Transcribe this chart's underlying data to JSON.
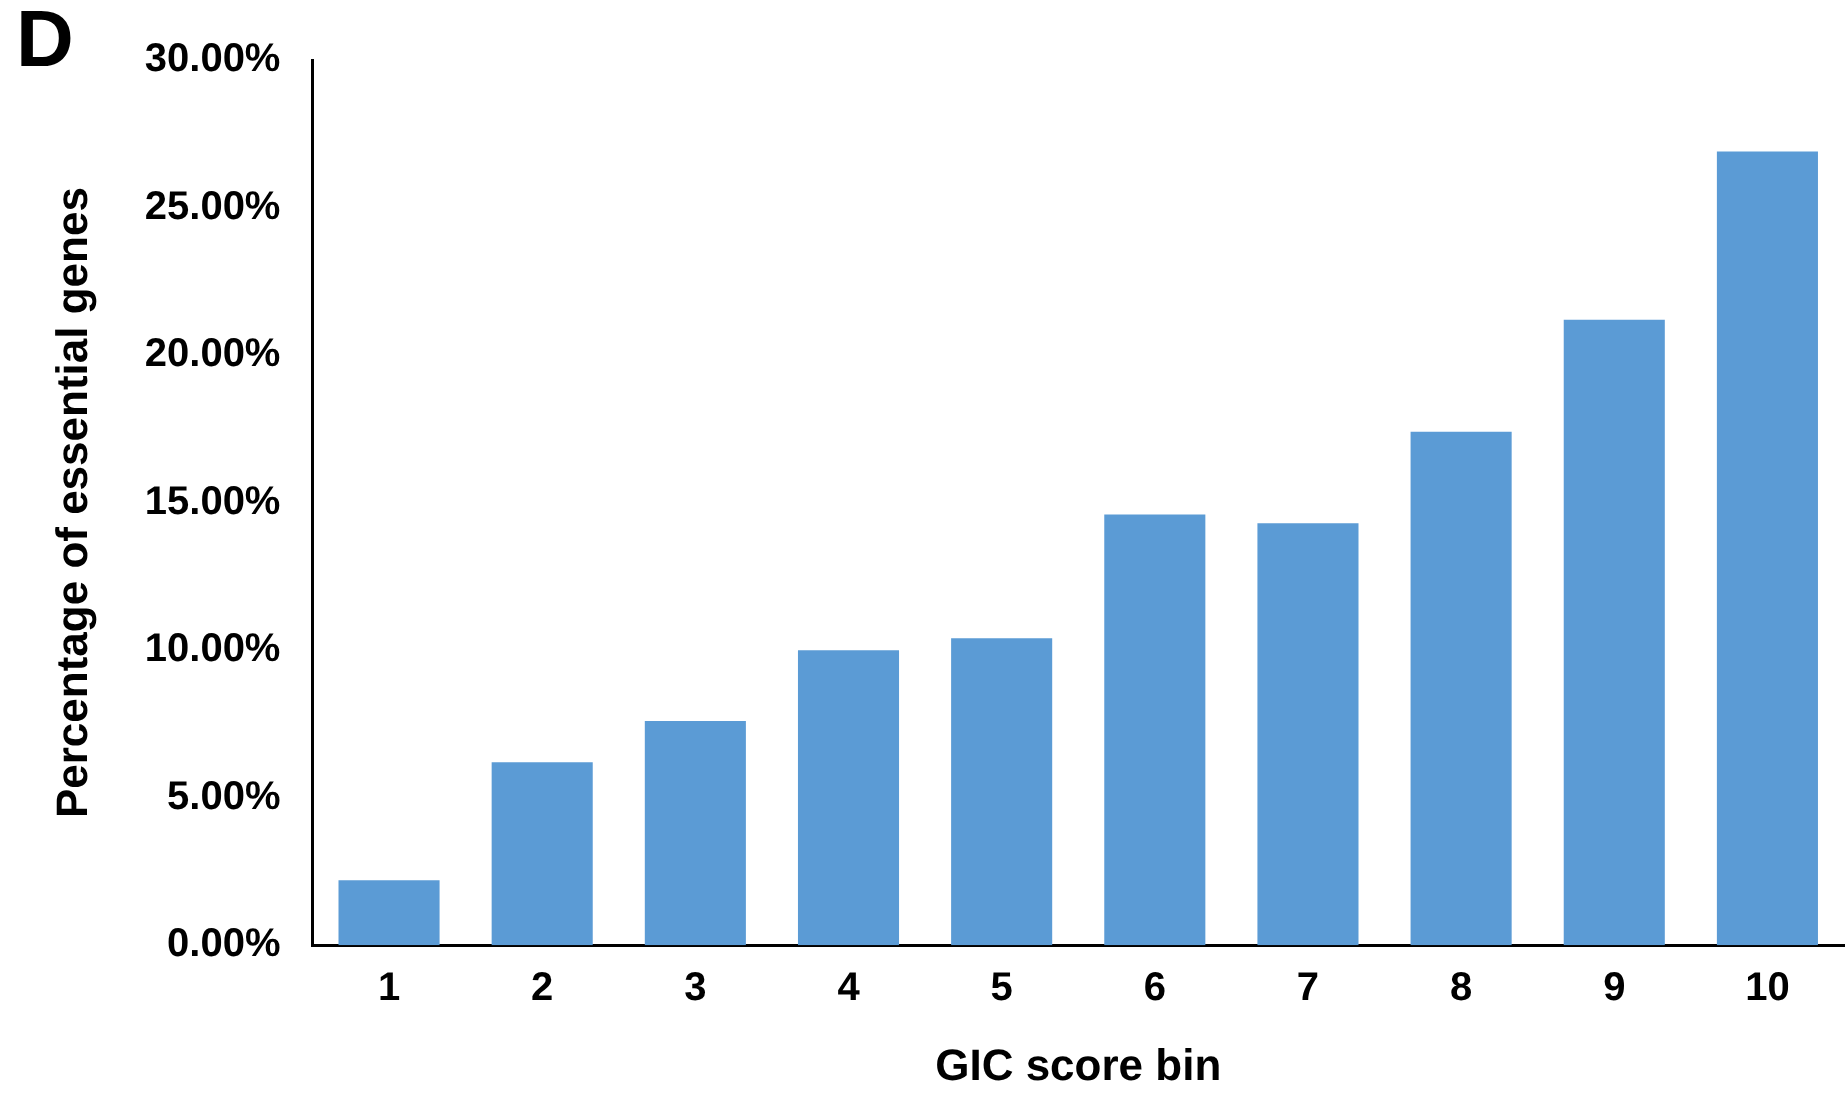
{
  "chart_data": {
    "type": "bar",
    "categories": [
      "1",
      "2",
      "3",
      "4",
      "5",
      "6",
      "7",
      "8",
      "9",
      "10"
    ],
    "values": [
      2.2,
      6.2,
      7.6,
      10.0,
      10.4,
      14.6,
      14.3,
      17.4,
      21.2,
      26.9
    ],
    "color": "#5b9bd5",
    "xlabel": "GIC score bin",
    "ylabel": "Percentage of essential genes",
    "ylim": [
      0,
      30
    ],
    "yticks": [
      {
        "value": 0,
        "label": "0.00%"
      },
      {
        "value": 5,
        "label": "5.00%"
      },
      {
        "value": 10,
        "label": "10.00%"
      },
      {
        "value": 15,
        "label": "15.00%"
      },
      {
        "value": 20,
        "label": "20.00%"
      },
      {
        "value": 25,
        "label": "25.00%"
      },
      {
        "value": 30,
        "label": "30.00%"
      }
    ],
    "annotations": [
      "D"
    ],
    "grid": false,
    "legend": false
  }
}
